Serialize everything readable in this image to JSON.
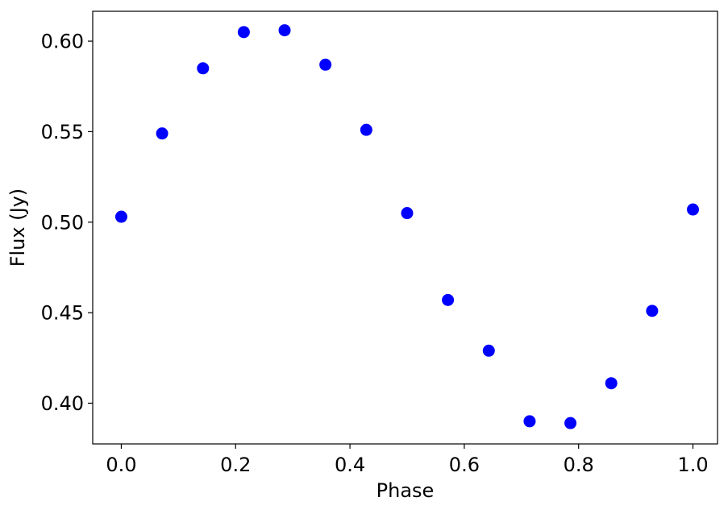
{
  "chart_data": {
    "type": "scatter",
    "title": "",
    "xlabel": "Phase",
    "ylabel": "Flux (Jy)",
    "xlim": [
      -0.05,
      1.043
    ],
    "ylim": [
      0.3775,
      0.6165
    ],
    "xticks": [
      0.0,
      0.2,
      0.4,
      0.6,
      0.8,
      1.0
    ],
    "xtick_labels": [
      "0.0",
      "0.2",
      "0.4",
      "0.6",
      "0.8",
      "1.0"
    ],
    "yticks": [
      0.4,
      0.45,
      0.5,
      0.55,
      0.6
    ],
    "ytick_labels": [
      "0.40",
      "0.45",
      "0.50",
      "0.55",
      "0.60"
    ],
    "grid": false,
    "series": [
      {
        "color": "#0000ff",
        "marker": "circle",
        "x": [
          0.0,
          0.0714,
          0.1429,
          0.2143,
          0.2857,
          0.3571,
          0.4286,
          0.5,
          0.5714,
          0.6429,
          0.7143,
          0.7857,
          0.8571,
          0.9286,
          1.0
        ],
        "y": [
          0.503,
          0.549,
          0.585,
          0.605,
          0.606,
          0.587,
          0.551,
          0.505,
          0.457,
          0.429,
          0.39,
          0.389,
          0.411,
          0.451,
          0.507
        ]
      }
    ]
  }
}
